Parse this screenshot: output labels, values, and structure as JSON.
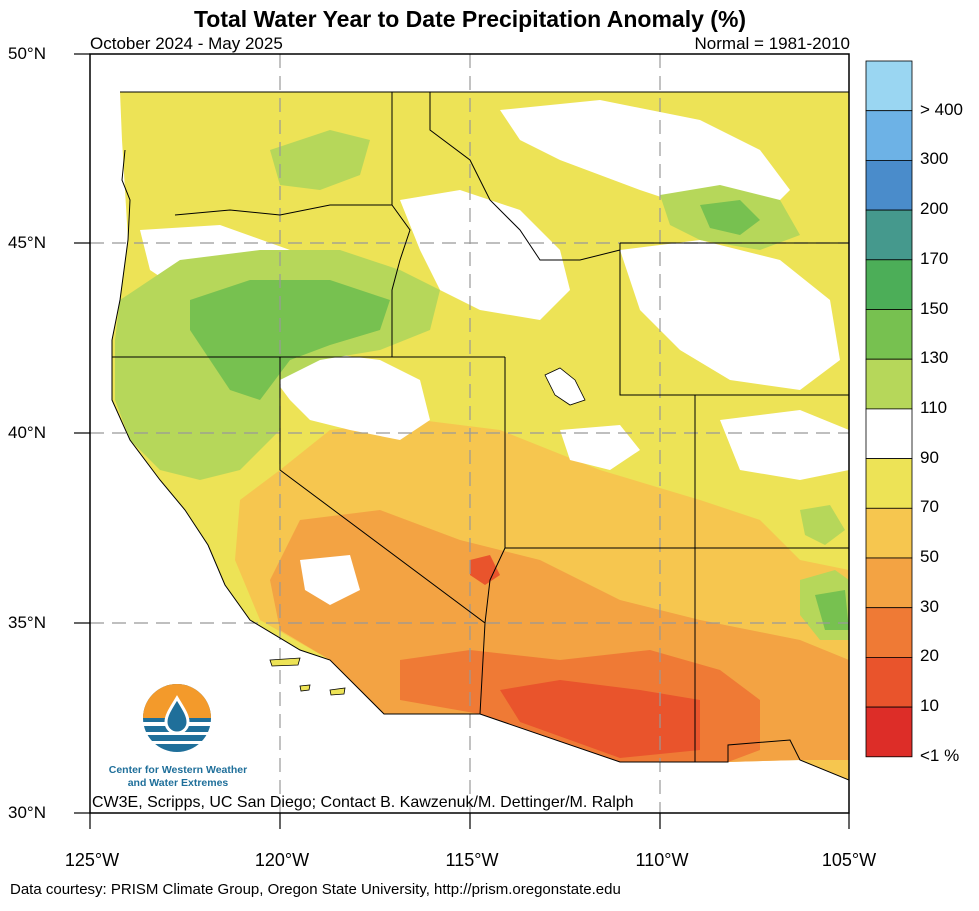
{
  "title": "Total Water Year to Date Precipitation Anomaly (%)",
  "period": "October 2024 - May 2025",
  "normal": "Normal = 1981-2010",
  "lat_labels": [
    "50°N",
    "45°N",
    "40°N",
    "35°N",
    "30°N"
  ],
  "lon_labels": [
    "125°W",
    "120°W",
    "115°W",
    "110°W",
    "105°W"
  ],
  "legend": {
    "labels": [
      "> 400",
      "300",
      "200",
      "170",
      "150",
      "130",
      "110",
      "90",
      "70",
      "50",
      "30",
      "20",
      "10",
      "<1 %"
    ],
    "colors": [
      "#9ad6f2",
      "#6db2e6",
      "#4a8ccb",
      "#45998d",
      "#4cae58",
      "#77c150",
      "#b6d75a",
      "#ffffff",
      "#ede356",
      "#f6c64f",
      "#f3a343",
      "#ef7a35",
      "#e9542c",
      "#dd2d28"
    ]
  },
  "logo": {
    "org_line1": "Center for Western Weather",
    "org_line2": "and Water Extremes"
  },
  "credit": "CW3E, Scripps, UC San Diego; Contact B. Kawzenuk/M. Dettinger/M. Ralph",
  "footer": "Data courtesy: PRISM Climate Group, Oregon State University, http://prism.oregonstate.edu"
}
